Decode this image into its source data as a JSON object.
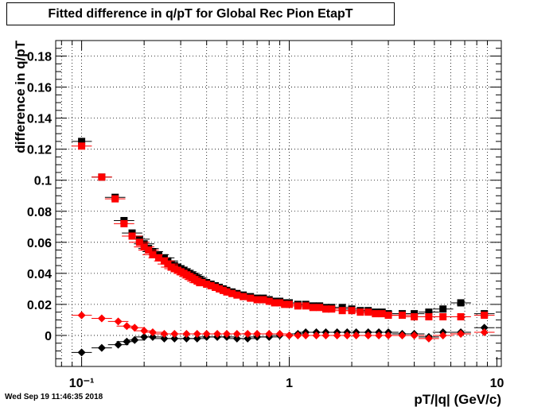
{
  "title": "Fitted difference in q/pT for Global Rec Pion EtapT",
  "timestamp": "Wed Sep 19 11:46:35 2018",
  "chart_data": {
    "type": "scatter",
    "title": "Fitted difference in q/pT for Global Rec Pion EtapT",
    "xlabel": "pT/|q| (GeV/c)",
    "ylabel": "difference in q/pT",
    "xscale": "log",
    "xlim": [
      0.075,
      10.5
    ],
    "ylim": [
      -0.02,
      0.19
    ],
    "grid": true,
    "x_tick_labels": [
      "10⁻¹",
      "1",
      "10"
    ],
    "x_ticks": [
      0.1,
      1,
      10
    ],
    "y_tick_labels": [
      "0",
      "0.02",
      "0.04",
      "0.06",
      "0.08",
      "0.1",
      "0.12",
      "0.14",
      "0.16",
      "0.18"
    ],
    "y_ticks": [
      0,
      0.02,
      0.04,
      0.06,
      0.08,
      0.1,
      0.12,
      0.14,
      0.16,
      0.18
    ],
    "series": [
      {
        "color": "#000000",
        "marker": "square",
        "x": [
          0.1,
          0.125,
          0.145,
          0.16,
          0.175,
          0.19,
          0.2,
          0.21,
          0.22,
          0.235,
          0.25,
          0.26,
          0.27,
          0.28,
          0.29,
          0.3,
          0.31,
          0.32,
          0.33,
          0.34,
          0.35,
          0.36,
          0.37,
          0.38,
          0.4,
          0.42,
          0.44,
          0.46,
          0.48,
          0.5,
          0.53,
          0.56,
          0.6,
          0.65,
          0.7,
          0.75,
          0.8,
          0.85,
          0.9,
          0.95,
          1.0,
          1.1,
          1.2,
          1.3,
          1.4,
          1.5,
          1.6,
          1.8,
          2.0,
          2.2,
          2.4,
          2.6,
          2.8,
          3.0,
          3.5,
          4.0,
          4.7,
          5.5,
          6.7,
          8.7
        ],
        "y": [
          0.125,
          0.102,
          0.089,
          0.074,
          0.066,
          0.062,
          0.059,
          0.056,
          0.054,
          0.052,
          0.05,
          0.048,
          0.046,
          0.045,
          0.044,
          0.043,
          0.042,
          0.041,
          0.04,
          0.039,
          0.038,
          0.037,
          0.036,
          0.035,
          0.034,
          0.033,
          0.032,
          0.031,
          0.03,
          0.029,
          0.028,
          0.027,
          0.026,
          0.025,
          0.024,
          0.024,
          0.023,
          0.022,
          0.022,
          0.021,
          0.021,
          0.02,
          0.02,
          0.019,
          0.019,
          0.018,
          0.018,
          0.018,
          0.017,
          0.016,
          0.016,
          0.015,
          0.015,
          0.014,
          0.014,
          0.014,
          0.015,
          0.017,
          0.021,
          0.014
        ]
      },
      {
        "color": "#ff0000",
        "marker": "square",
        "x": [
          0.1,
          0.125,
          0.145,
          0.16,
          0.175,
          0.19,
          0.2,
          0.21,
          0.22,
          0.235,
          0.25,
          0.26,
          0.27,
          0.28,
          0.29,
          0.3,
          0.31,
          0.32,
          0.33,
          0.34,
          0.35,
          0.36,
          0.37,
          0.38,
          0.4,
          0.42,
          0.44,
          0.46,
          0.48,
          0.5,
          0.53,
          0.56,
          0.6,
          0.65,
          0.7,
          0.75,
          0.8,
          0.85,
          0.9,
          0.95,
          1.0,
          1.1,
          1.2,
          1.3,
          1.4,
          1.5,
          1.6,
          1.8,
          2.0,
          2.2,
          2.4,
          2.6,
          2.8,
          3.0,
          3.5,
          4.0,
          4.7,
          5.5,
          6.7,
          8.7
        ],
        "y": [
          0.122,
          0.102,
          0.088,
          0.072,
          0.064,
          0.06,
          0.057,
          0.055,
          0.052,
          0.05,
          0.048,
          0.046,
          0.044,
          0.043,
          0.042,
          0.041,
          0.04,
          0.039,
          0.038,
          0.037,
          0.036,
          0.035,
          0.034,
          0.034,
          0.033,
          0.032,
          0.031,
          0.03,
          0.029,
          0.028,
          0.027,
          0.026,
          0.025,
          0.024,
          0.023,
          0.023,
          0.022,
          0.021,
          0.021,
          0.02,
          0.02,
          0.019,
          0.019,
          0.018,
          0.018,
          0.017,
          0.017,
          0.016,
          0.016,
          0.015,
          0.015,
          0.014,
          0.014,
          0.013,
          0.013,
          0.012,
          0.012,
          0.012,
          0.012,
          0.013
        ]
      },
      {
        "color": "#000000",
        "marker": "diamond",
        "x": [
          0.1,
          0.125,
          0.15,
          0.165,
          0.18,
          0.2,
          0.22,
          0.25,
          0.28,
          0.32,
          0.36,
          0.4,
          0.45,
          0.5,
          0.56,
          0.63,
          0.7,
          0.8,
          0.9,
          1.0,
          1.1,
          1.2,
          1.35,
          1.5,
          1.7,
          1.9,
          2.1,
          2.4,
          2.7,
          3.0,
          3.5,
          4.0,
          4.7,
          5.5,
          6.7,
          8.7
        ],
        "y": [
          -0.011,
          -0.008,
          -0.006,
          -0.004,
          -0.003,
          -0.001,
          -0.001,
          -0.002,
          -0.002,
          -0.002,
          -0.002,
          -0.001,
          -0.001,
          -0.001,
          -0.002,
          -0.002,
          -0.001,
          -0.001,
          0.0,
          0.0,
          0.001,
          0.002,
          0.002,
          0.002,
          0.002,
          0.002,
          0.002,
          0.002,
          0.002,
          0.002,
          0.001,
          0.001,
          -0.001,
          0.002,
          0.002,
          0.005
        ]
      },
      {
        "color": "#ff0000",
        "marker": "diamond",
        "x": [
          0.1,
          0.125,
          0.15,
          0.165,
          0.18,
          0.2,
          0.22,
          0.25,
          0.28,
          0.32,
          0.36,
          0.4,
          0.45,
          0.5,
          0.56,
          0.63,
          0.7,
          0.8,
          0.9,
          1.0,
          1.1,
          1.2,
          1.35,
          1.5,
          1.7,
          1.9,
          2.1,
          2.4,
          2.7,
          3.0,
          3.5,
          4.0,
          4.7,
          5.5,
          6.7,
          8.7
        ],
        "y": [
          0.013,
          0.011,
          0.009,
          0.006,
          0.005,
          0.003,
          0.002,
          0.001,
          0.001,
          0.001,
          0.001,
          0.001,
          0.001,
          0.001,
          0.001,
          0.001,
          0.001,
          0.001,
          0.001,
          0.0,
          0.0,
          0.0,
          0.0,
          0.0,
          0.0,
          0.0,
          0.0,
          0.0,
          0.0,
          0.0,
          0.0,
          0.0,
          -0.002,
          0.0,
          0.001,
          0.002
        ]
      }
    ]
  }
}
